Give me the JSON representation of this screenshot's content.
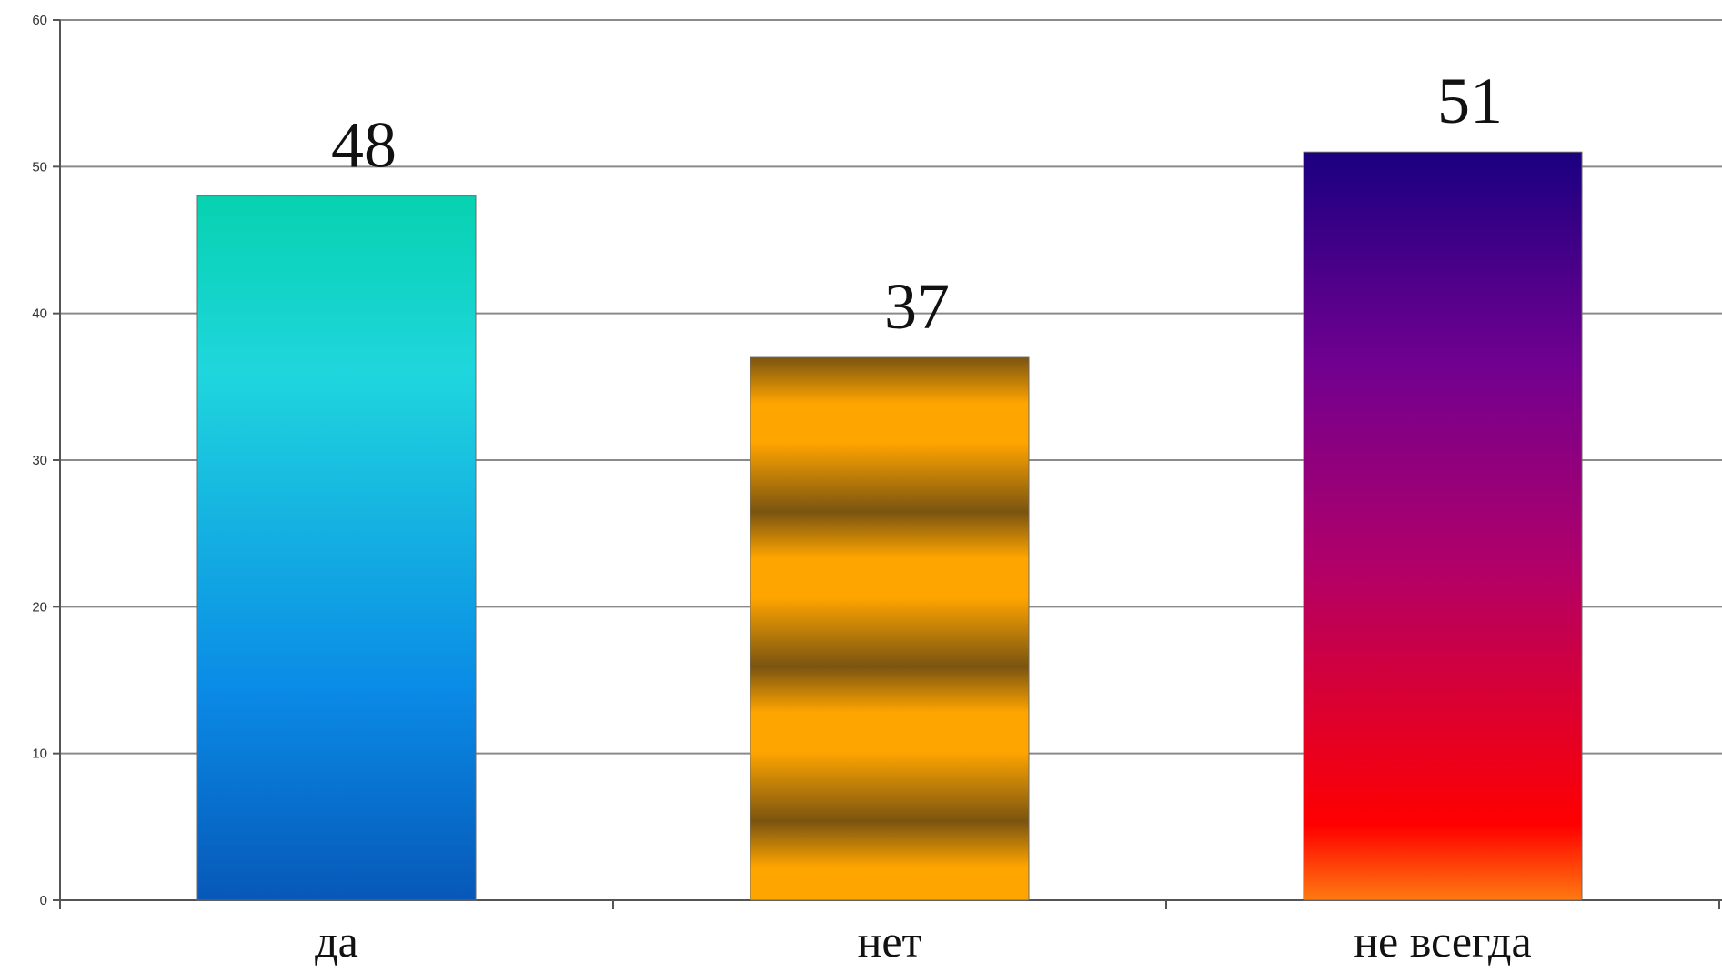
{
  "chart_data": {
    "type": "bar",
    "title": "",
    "xlabel": "",
    "ylabel": "",
    "categories": [
      "да",
      "нет",
      "не всегда"
    ],
    "values": [
      48,
      37,
      51
    ],
    "ylim": [
      0,
      60
    ],
    "yticks": [
      "0",
      "10",
      "20",
      "30",
      "40",
      "50",
      "60"
    ],
    "grid": true,
    "legend": "none",
    "data_labels": [
      "48",
      "37",
      "51"
    ],
    "bar_colors": [
      [
        "#06d2b0",
        "#1fd6dd",
        "#0a8be6",
        "#0758b8"
      ],
      [
        "#ffa500",
        "#7a5410",
        "#ffa500",
        "#7a5410"
      ],
      [
        "#1a0080",
        "#800080",
        "#cc004f",
        "#ff0000",
        "#ff6f10"
      ]
    ],
    "title_color": "#1a6fa8"
  }
}
